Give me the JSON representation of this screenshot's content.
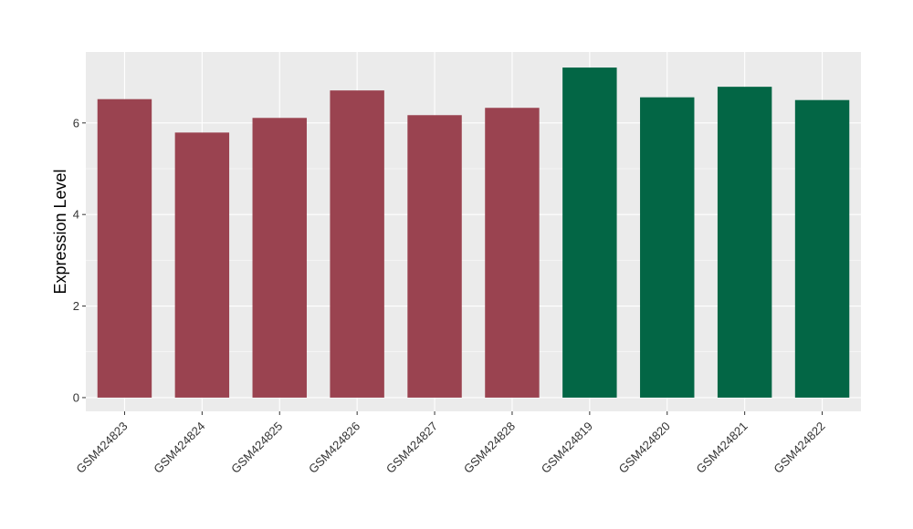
{
  "chart_data": {
    "type": "bar",
    "title": "",
    "xlabel": "",
    "ylabel": "Expression Level",
    "ylim": [
      -0.3,
      7.55
    ],
    "yticks": [
      0,
      2,
      4,
      6
    ],
    "grid": true,
    "background_color": "#EBEBEB",
    "gridline_color": "#FFFFFF",
    "categories": [
      "GSM424823",
      "GSM424824",
      "GSM424825",
      "GSM424826",
      "GSM424827",
      "GSM424828",
      "GSM424819",
      "GSM424820",
      "GSM424821",
      "GSM424822"
    ],
    "values": [
      6.52,
      5.79,
      6.11,
      6.71,
      6.17,
      6.33,
      7.21,
      6.56,
      6.79,
      6.5
    ],
    "groups": [
      "g1",
      "g1",
      "g1",
      "g1",
      "g1",
      "g1",
      "g2",
      "g2",
      "g2",
      "g2"
    ],
    "group_colors": {
      "g1": "#9A4350",
      "g2": "#036645"
    }
  }
}
